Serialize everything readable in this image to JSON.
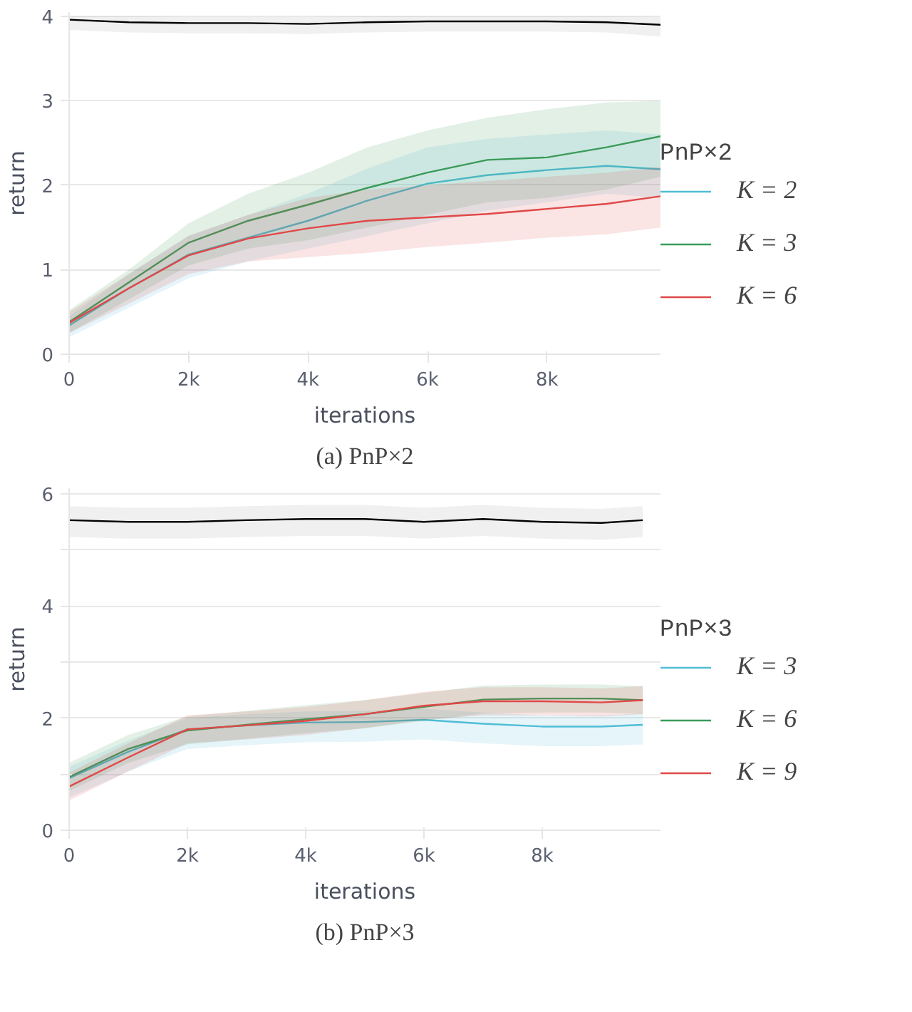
{
  "chart_data": [
    {
      "type": "line",
      "title": "(a) PnP×2",
      "xlabel": "iterations",
      "ylabel": "return",
      "legend_title": "PnP×2",
      "legend": "right",
      "grid": "y",
      "x": [
        0,
        1000,
        2000,
        3000,
        4000,
        5000,
        6000,
        7000,
        8000,
        9000,
        9900
      ],
      "xlim": [
        0,
        9900
      ],
      "ylim": [
        0,
        4.05
      ],
      "xticks": [
        0,
        {
          "value": 2000,
          "label": "2k"
        },
        {
          "value": 4000,
          "label": "4k"
        },
        {
          "value": 6000,
          "label": "6k"
        },
        {
          "value": 8000,
          "label": "8k"
        }
      ],
      "yticks": [
        0,
        1,
        2,
        3,
        4
      ],
      "series": [
        {
          "color": "#000000",
          "values": [
            3.96,
            3.93,
            3.92,
            3.92,
            3.91,
            3.93,
            3.94,
            3.94,
            3.94,
            3.93,
            3.9
          ],
          "lower": [
            3.84,
            3.81,
            3.8,
            3.8,
            3.79,
            3.81,
            3.82,
            3.82,
            3.82,
            3.81,
            3.76
          ],
          "upper": [
            4.0,
            4.0,
            3.99,
            3.99,
            3.99,
            4.0,
            4.0,
            4.0,
            4.0,
            4.0,
            3.99
          ]
        },
        {
          "name": "K = 2",
          "color": "#4fbdd6",
          "values": [
            0.34,
            0.78,
            1.18,
            1.38,
            1.58,
            1.82,
            2.02,
            2.12,
            2.18,
            2.23,
            2.19
          ],
          "lower": [
            0.2,
            0.55,
            0.9,
            1.1,
            1.25,
            1.4,
            1.55,
            1.7,
            1.8,
            1.9,
            1.85
          ],
          "upper": [
            0.45,
            0.95,
            1.4,
            1.65,
            1.9,
            2.2,
            2.45,
            2.55,
            2.6,
            2.65,
            2.6
          ]
        },
        {
          "name": "K = 3",
          "color": "#3a9a5a",
          "values": [
            0.38,
            0.85,
            1.32,
            1.58,
            1.77,
            1.97,
            2.15,
            2.3,
            2.33,
            2.45,
            2.58
          ],
          "lower": [
            0.25,
            0.65,
            1.05,
            1.25,
            1.35,
            1.5,
            1.65,
            1.8,
            1.85,
            1.95,
            2.1
          ],
          "upper": [
            0.52,
            1.0,
            1.55,
            1.9,
            2.15,
            2.45,
            2.65,
            2.8,
            2.9,
            2.98,
            3.0
          ]
        },
        {
          "name": "K = 6",
          "color": "#e04848",
          "values": [
            0.37,
            0.78,
            1.17,
            1.37,
            1.49,
            1.58,
            1.62,
            1.66,
            1.72,
            1.78,
            1.87
          ],
          "lower": [
            0.25,
            0.6,
            0.95,
            1.1,
            1.15,
            1.2,
            1.27,
            1.32,
            1.38,
            1.42,
            1.5
          ],
          "upper": [
            0.5,
            0.95,
            1.4,
            1.65,
            1.85,
            1.95,
            2.0,
            2.05,
            2.1,
            2.15,
            2.22
          ]
        }
      ]
    },
    {
      "type": "line",
      "title": "(b) PnP×3",
      "xlabel": "iterations",
      "ylabel": "return",
      "legend_title": "PnP×3",
      "legend": "right",
      "grid": "y",
      "x": [
        0,
        1000,
        2000,
        3000,
        4000,
        5000,
        6000,
        7000,
        8000,
        9000,
        9700
      ],
      "xlim": [
        0,
        10000
      ],
      "ylim": [
        0,
        6.1
      ],
      "xticks": [
        0,
        {
          "value": 2000,
          "label": "2k"
        },
        {
          "value": 4000,
          "label": "4k"
        },
        {
          "value": 6000,
          "label": "6k"
        },
        {
          "value": 8000,
          "label": "8k"
        }
      ],
      "yticks": [
        0,
        {
          "value": 1,
          "label": null
        },
        2,
        {
          "value": 3,
          "label": null
        },
        4,
        {
          "value": 5,
          "label": null
        },
        6
      ],
      "series": [
        {
          "color": "#000000",
          "values": [
            5.53,
            5.5,
            5.5,
            5.53,
            5.55,
            5.55,
            5.5,
            5.55,
            5.5,
            5.48,
            5.53
          ],
          "lower": [
            5.23,
            5.2,
            5.2,
            5.23,
            5.25,
            5.25,
            5.2,
            5.25,
            5.2,
            5.18,
            5.23
          ],
          "upper": [
            5.78,
            5.75,
            5.75,
            5.78,
            5.8,
            5.8,
            5.75,
            5.8,
            5.75,
            5.73,
            5.78
          ]
        },
        {
          "name": "K = 3",
          "color": "#4fbdd6",
          "values": [
            0.93,
            1.4,
            1.8,
            1.87,
            1.92,
            1.93,
            1.97,
            1.9,
            1.85,
            1.85,
            1.88
          ],
          "lower": [
            0.58,
            1.05,
            1.45,
            1.52,
            1.57,
            1.58,
            1.62,
            1.55,
            1.5,
            1.5,
            1.53
          ],
          "upper": [
            1.13,
            1.6,
            2.0,
            2.07,
            2.12,
            2.13,
            2.17,
            2.1,
            2.05,
            2.05,
            2.08
          ]
        },
        {
          "name": "K = 6",
          "color": "#3a9a5a",
          "values": [
            0.95,
            1.45,
            1.78,
            1.88,
            1.98,
            2.07,
            2.2,
            2.33,
            2.35,
            2.35,
            2.32
          ],
          "lower": [
            0.7,
            1.2,
            1.53,
            1.63,
            1.73,
            1.82,
            1.95,
            2.08,
            2.1,
            2.1,
            2.07
          ],
          "upper": [
            1.2,
            1.7,
            2.03,
            2.13,
            2.23,
            2.32,
            2.45,
            2.58,
            2.6,
            2.6,
            2.57
          ]
        },
        {
          "name": "K = 9",
          "color": "#e04848",
          "values": [
            0.78,
            1.3,
            1.8,
            1.87,
            1.95,
            2.07,
            2.22,
            2.3,
            2.3,
            2.28,
            2.32
          ],
          "lower": [
            0.53,
            1.05,
            1.55,
            1.62,
            1.7,
            1.82,
            1.97,
            2.05,
            2.05,
            2.03,
            2.07
          ],
          "upper": [
            1.03,
            1.55,
            2.05,
            2.12,
            2.2,
            2.32,
            2.47,
            2.55,
            2.55,
            2.53,
            2.57
          ]
        }
      ]
    }
  ]
}
